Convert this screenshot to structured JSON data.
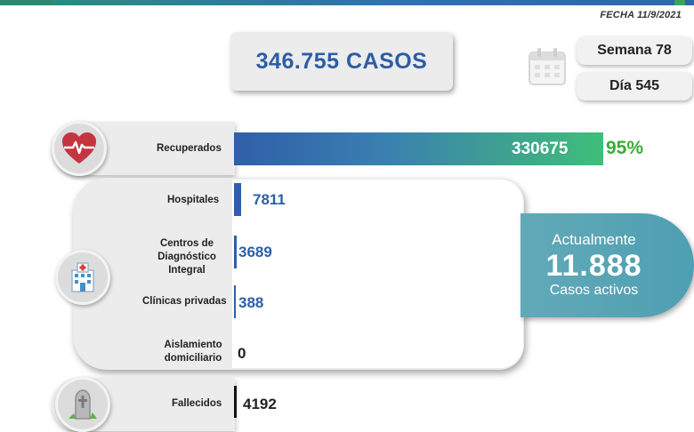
{
  "date": "FECHA 11/9/2021",
  "total_cases": "346.755 CASOS",
  "week": "Semana 78",
  "day": "Día 545",
  "recovered": {
    "label": "Recuperados",
    "value": "330675",
    "percent": "95%"
  },
  "active_breakdown": [
    {
      "label": "Hospitales",
      "value": "7811"
    },
    {
      "label": "Centros de Diagnóstico Integral",
      "value": "3689"
    },
    {
      "label": "Clínicas privadas",
      "value": "388"
    },
    {
      "label": "Aislamiento domiciliario",
      "value": "0"
    }
  ],
  "active_summary": {
    "title": "Actualmente",
    "value": "11.888",
    "subtitle": "Casos activos"
  },
  "deaths": {
    "label": "Fallecidos",
    "value": "4192"
  },
  "icons": [
    "heart-pulse-icon",
    "hospital-icon",
    "calendar-icon",
    "gravestone-icon"
  ],
  "colors": {
    "primary_blue": "#2c5ea6",
    "green": "#3bab3a",
    "teal": "#4e9fb2"
  }
}
